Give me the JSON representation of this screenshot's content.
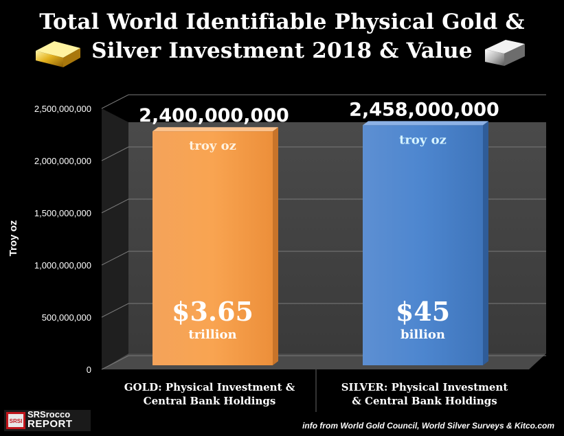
{
  "title": {
    "line1": "Total World Identifiable Physical Gold &",
    "line2": "Silver Investment 2018 & Value"
  },
  "source_note": "info from World Gold Council, World Silver Surveys & Kitco.com",
  "logo": {
    "badge": "SRSI",
    "line1": "SRSrocco",
    "line2": "REPORT"
  },
  "icons": [
    "gold-bar-icon",
    "silver-bar-icon"
  ],
  "colors": {
    "background": "#000000",
    "gold_bar": "#f79646",
    "silver_bar": "#4f81bd",
    "bar_label_text": "#ffffff"
  },
  "chart_data": {
    "type": "bar",
    "ylabel": "Troy oz",
    "ylim": [
      0,
      2500000000
    ],
    "yticks": [
      "0",
      "500,000,000",
      "1,000,000,000",
      "1,500,000,000",
      "2,000,000,000",
      "2,500,000,000"
    ],
    "grid": true,
    "categories": [
      [
        "GOLD: Physical Investment &",
        "Central Bank Holdings"
      ],
      [
        "SILVER: Physical Investment",
        "& Central Bank Holdings"
      ]
    ],
    "values": [
      2400000000,
      2458000000
    ],
    "value_labels": [
      "2,400,000,000",
      "2,458,000,000"
    ],
    "unit_labels": [
      "troy oz",
      "troy oz"
    ],
    "market_values": [
      "$3.65",
      "$45"
    ],
    "market_value_units": [
      "trillion",
      "billion"
    ],
    "bar_colors": [
      "#f79646",
      "#4f81bd"
    ]
  }
}
